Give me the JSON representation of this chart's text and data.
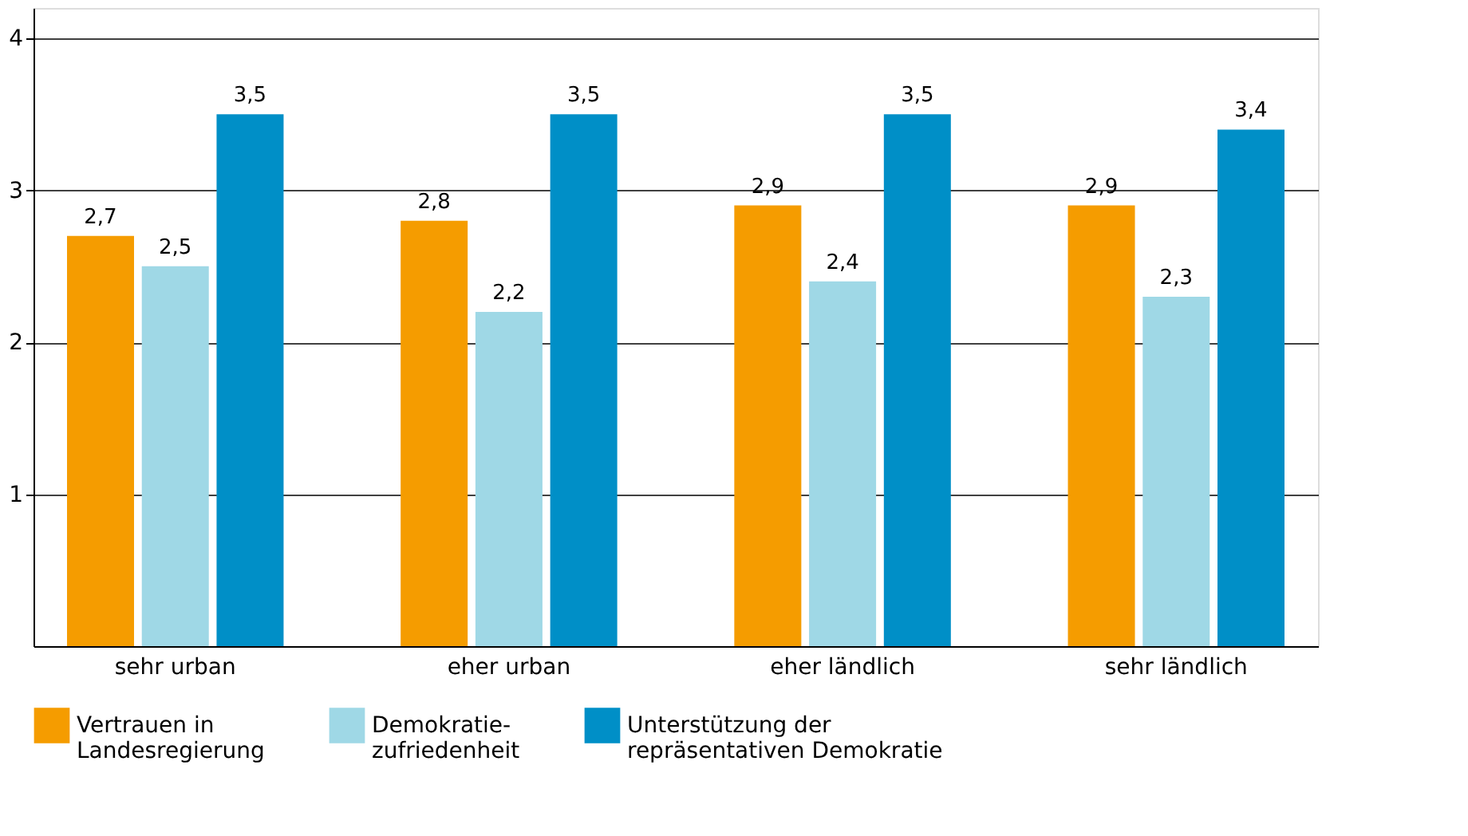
{
  "chart_data": {
    "type": "bar",
    "categories": [
      "sehr urban",
      "eher urban",
      "eher ländlich",
      "sehr ländlich"
    ],
    "series": [
      {
        "name": "Vertrauen in\nLandesregierung",
        "color": "#f59c00",
        "values": [
          2.7,
          2.8,
          2.9,
          2.9
        ],
        "value_labels": [
          "2,7",
          "2,8",
          "2,9",
          "2,9"
        ]
      },
      {
        "name": "Demokratie-\nzufriedenheit",
        "color": "#9fd8e6",
        "values": [
          2.5,
          2.2,
          2.4,
          2.3
        ],
        "value_labels": [
          "2,5",
          "2,2",
          "2,4",
          "2,3"
        ]
      },
      {
        "name": "Unterstützung der\nrepräsentativen Demokratie",
        "color": "#008fc7",
        "values": [
          3.5,
          3.5,
          3.5,
          3.4
        ],
        "value_labels": [
          "3,5",
          "3,5",
          "3,5",
          "3,4"
        ]
      }
    ],
    "ylim": [
      0,
      4.2
    ],
    "yticks": [
      1,
      2,
      3,
      4
    ],
    "grid": "y",
    "legend": "bottom"
  }
}
